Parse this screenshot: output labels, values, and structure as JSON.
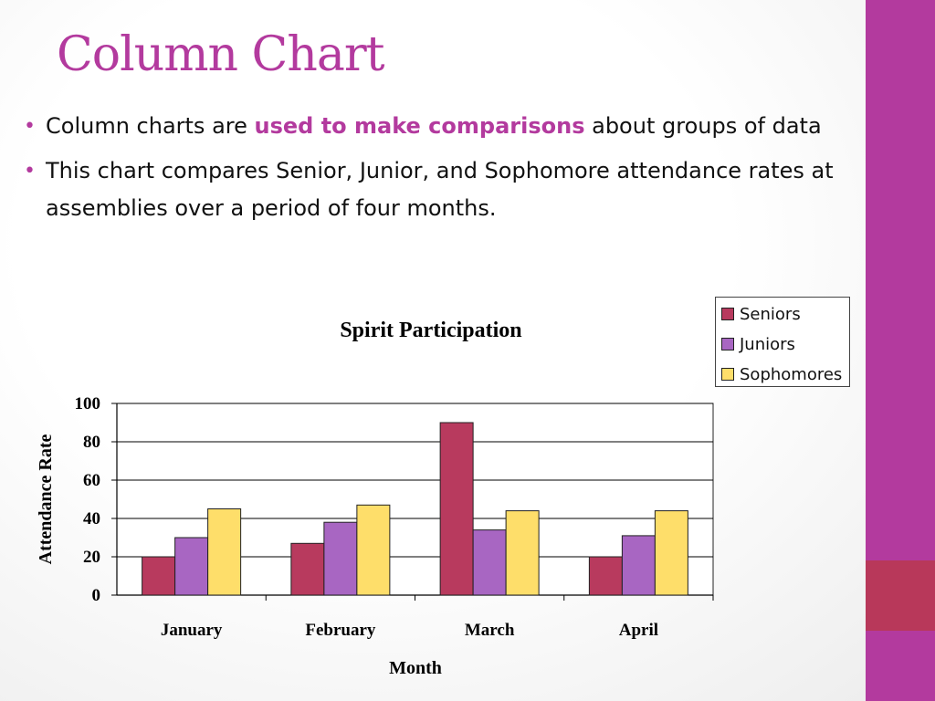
{
  "slide": {
    "title": "Column Chart",
    "bullets": [
      {
        "before": "Column charts are ",
        "highlight": "used to make comparisons",
        "after": " about groups of data"
      },
      {
        "text": "This chart compares Senior, Junior, and Sophomore attendance rates at assemblies over a period of four months."
      }
    ]
  },
  "colors": {
    "accent": "#b33a9e",
    "accent_block": "#b8385a"
  },
  "chart_data": {
    "type": "bar",
    "title": "Spirit Participation",
    "xlabel": "Month",
    "ylabel": "Attendance Rate",
    "categories": [
      "January",
      "February",
      "March",
      "April"
    ],
    "ylim": [
      0,
      100
    ],
    "yticks": [
      0,
      20,
      40,
      60,
      80,
      100
    ],
    "grid": true,
    "legend_position": "top-right",
    "series": [
      {
        "name": "Seniors",
        "color": "#b83a5e",
        "values": [
          20,
          27,
          90,
          20
        ]
      },
      {
        "name": "Juniors",
        "color": "#a866c2",
        "values": [
          30,
          38,
          34,
          31
        ]
      },
      {
        "name": "Sophomores",
        "color": "#fede6a",
        "values": [
          45,
          47,
          44,
          44
        ]
      }
    ]
  }
}
